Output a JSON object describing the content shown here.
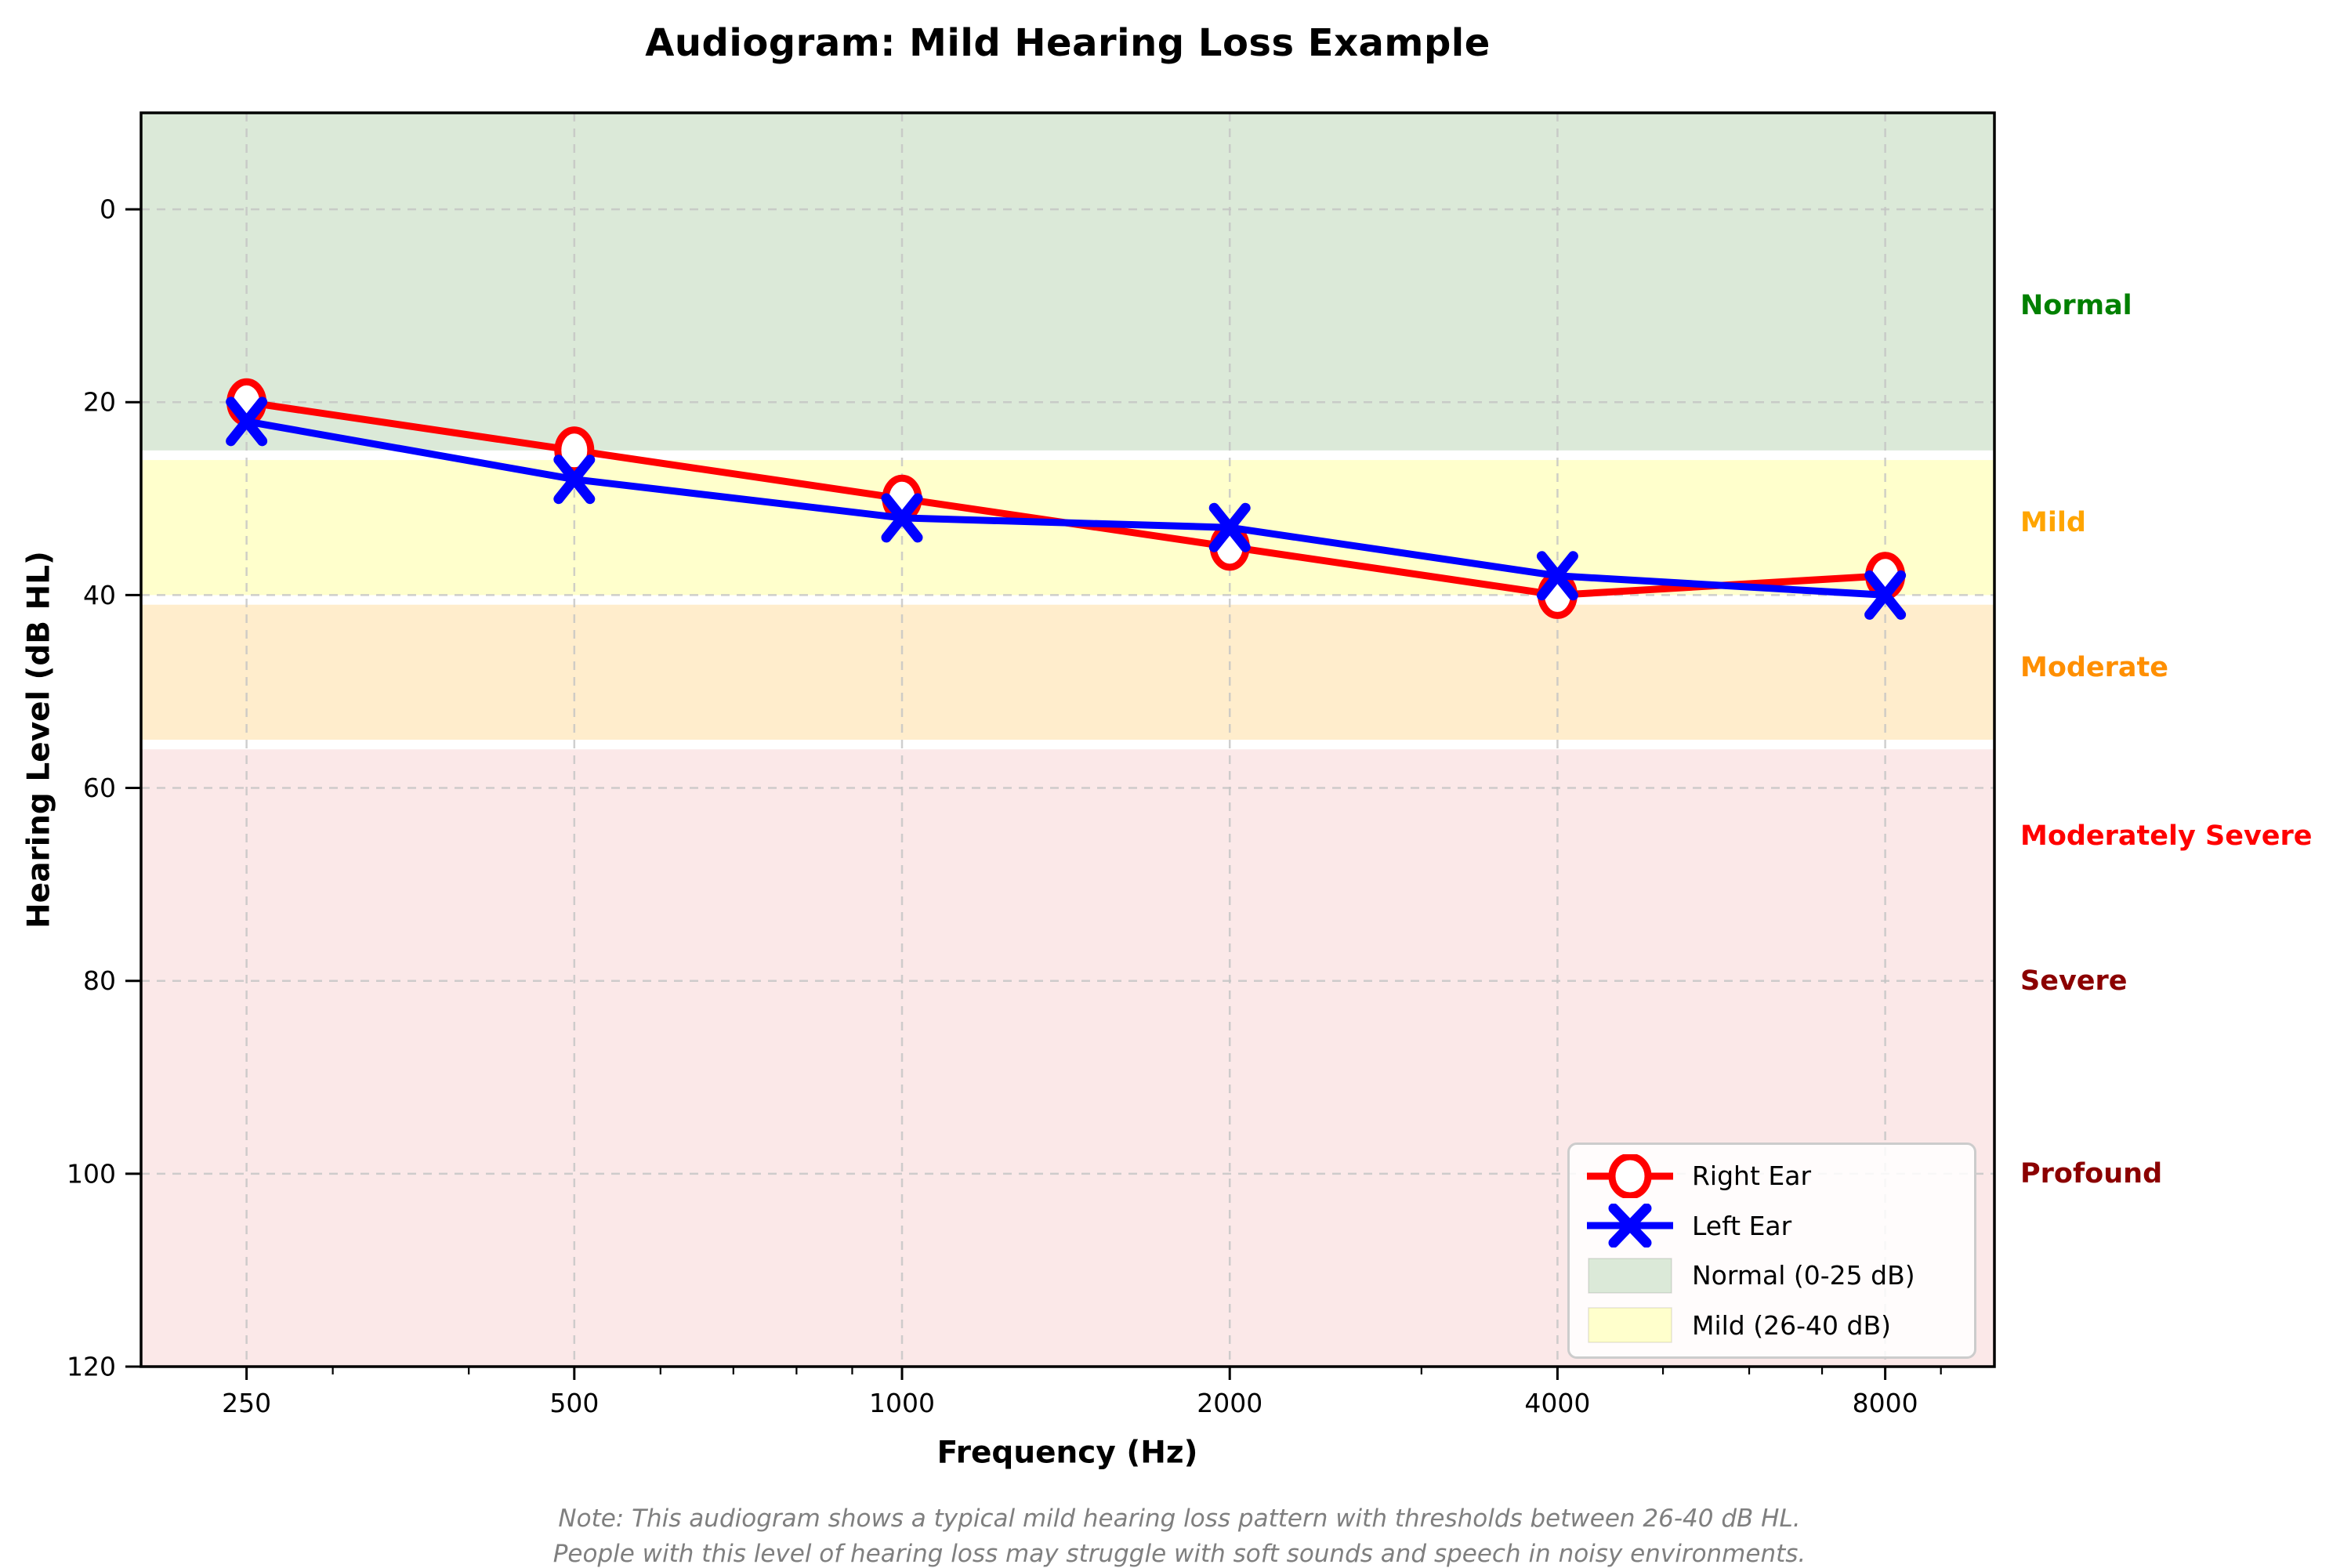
{
  "chart_data": {
    "type": "line",
    "title": "Audiogram: Mild Hearing Loss Example",
    "xlabel": "Frequency (Hz)",
    "ylabel": "Hearing Level (dB HL)",
    "x_scale": "log",
    "y_inverted": true,
    "grid": true,
    "xlim": [
      200,
      10079
    ],
    "ylim_top": -10,
    "ylim_bottom": 120,
    "x_ticks": [
      250,
      500,
      1000,
      2000,
      4000,
      8000
    ],
    "x_minor_ticks": [
      300,
      400,
      600,
      700,
      800,
      900,
      3000,
      5000,
      6000,
      7000,
      9000
    ],
    "y_ticks": [
      0,
      20,
      40,
      60,
      80,
      100,
      120
    ],
    "series": [
      {
        "name": "Right Ear",
        "marker": "circle-open",
        "color": "#ff0000",
        "x": [
          250,
          500,
          1000,
          2000,
          4000,
          8000
        ],
        "y": [
          20,
          25,
          30,
          35,
          40,
          38
        ]
      },
      {
        "name": "Left Ear",
        "marker": "x",
        "color": "#0000ff",
        "x": [
          250,
          500,
          1000,
          2000,
          4000,
          8000
        ],
        "y": [
          22,
          28,
          32,
          33,
          38,
          40
        ]
      }
    ],
    "zones": [
      {
        "name": "normal",
        "from": -10,
        "to": 25,
        "color": "#dbe9d8"
      },
      {
        "name": "mild",
        "from": 26,
        "to": 40,
        "color": "#ffffcc"
      },
      {
        "name": "moderate",
        "from": 41,
        "to": 55,
        "color": "#ffedcc"
      },
      {
        "name": "moderately-severe-to-profound",
        "from": 56,
        "to": 120,
        "color": "#fbe8e8"
      }
    ],
    "zone_labels": [
      {
        "text": "Normal",
        "db": 10,
        "color": "#008000"
      },
      {
        "text": "Mild",
        "db": 32.5,
        "color": "#ffa500"
      },
      {
        "text": "Moderate",
        "db": 47.5,
        "color": "#ff8f00"
      },
      {
        "text": "Moderately Severe",
        "db": 65,
        "color": "#ff0000"
      },
      {
        "text": "Severe",
        "db": 80,
        "color": "#8b0000"
      },
      {
        "text": "Profound",
        "db": 100,
        "color": "#8b0000"
      }
    ],
    "legend": {
      "position": "lower right",
      "items": [
        {
          "label": "Right Ear",
          "type": "line-circle",
          "color": "#ff0000"
        },
        {
          "label": "Left Ear",
          "type": "line-x",
          "color": "#0000ff"
        },
        {
          "label": "Normal (0-25 dB)",
          "type": "patch",
          "color": "#dbe9d8"
        },
        {
          "label": "Mild (26-40 dB)",
          "type": "patch",
          "color": "#ffffcc"
        }
      ]
    },
    "note_lines": [
      "Note: This audiogram shows a typical mild hearing loss pattern with thresholds between 26-40 dB HL.",
      "People with this level of hearing loss may struggle with soft sounds and speech in noisy environments."
    ],
    "style": {
      "grid_color": "#c4c4c4",
      "grid_dash": "11 9",
      "spine_color": "#000000",
      "tick_label_color": "#000000",
      "note_color": "#7f7f7f"
    }
  }
}
